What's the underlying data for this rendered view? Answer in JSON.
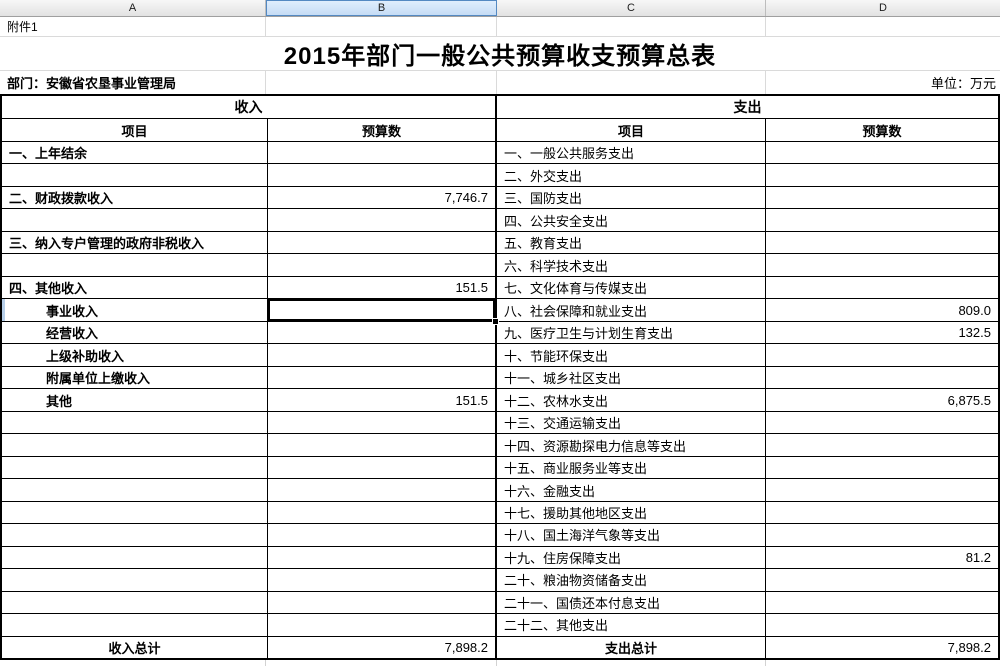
{
  "spreadsheet": {
    "column_headers": [
      "A",
      "B",
      "C",
      "D"
    ],
    "selected_column": "B",
    "attachment_note": "附件1",
    "title": "2015年部门一般公共预算收支预算总表",
    "department": "部门：安徽省农垦事业管理局",
    "unit": "单位：万元",
    "income_section": "收入",
    "expense_section": "支出",
    "income_item_header": "项目",
    "income_budget_header": "预算数",
    "expense_item_header": "项目",
    "expense_budget_header": "预算数",
    "rows": [
      {
        "left": "一、上年结余",
        "leftValue": "",
        "right": "一、一般公共服务支出",
        "rightValue": ""
      },
      {
        "left": "",
        "leftValue": "",
        "right": "二、外交支出",
        "rightValue": ""
      },
      {
        "left": "二、财政拨款收入",
        "leftValue": "7,746.7",
        "right": "三、国防支出",
        "rightValue": ""
      },
      {
        "left": "",
        "leftValue": "",
        "right": "四、公共安全支出",
        "rightValue": ""
      },
      {
        "left": "三、纳入专户管理的政府非税收入",
        "leftValue": "",
        "right": "五、教育支出",
        "rightValue": ""
      },
      {
        "left": "",
        "leftValue": "",
        "right": "六、科学技术支出",
        "rightValue": ""
      },
      {
        "left": "四、其他收入",
        "leftValue": "151.5",
        "right": "七、文化体育与传媒支出",
        "rightValue": ""
      },
      {
        "left": "事业收入",
        "leftValue": "",
        "right": "八、社会保障和就业支出",
        "rightValue": "809.0"
      },
      {
        "left": "经营收入",
        "leftValue": "",
        "right": "九、医疗卫生与计划生育支出",
        "rightValue": "132.5"
      },
      {
        "left": "上级补助收入",
        "leftValue": "",
        "right": "十、节能环保支出",
        "rightValue": ""
      },
      {
        "left": "附属单位上缴收入",
        "leftValue": "",
        "right": "十一、城乡社区支出",
        "rightValue": ""
      },
      {
        "left": "其他",
        "leftValue": "151.5",
        "right": "十二、农林水支出",
        "rightValue": "6,875.5"
      },
      {
        "left": "",
        "leftValue": "",
        "right": "十三、交通运输支出",
        "rightValue": ""
      },
      {
        "left": "",
        "leftValue": "",
        "right": "十四、资源勘探电力信息等支出",
        "rightValue": ""
      },
      {
        "left": "",
        "leftValue": "",
        "right": "十五、商业服务业等支出",
        "rightValue": ""
      },
      {
        "left": "",
        "leftValue": "",
        "right": "十六、金融支出",
        "rightValue": ""
      },
      {
        "left": "",
        "leftValue": "",
        "right": "十七、援助其他地区支出",
        "rightValue": ""
      },
      {
        "left": "",
        "leftValue": "",
        "right": "十八、国土海洋气象等支出",
        "rightValue": ""
      },
      {
        "left": "",
        "leftValue": "",
        "right": "十九、住房保障支出",
        "rightValue": "81.2"
      },
      {
        "left": "",
        "leftValue": "",
        "right": "二十、粮油物资储备支出",
        "rightValue": ""
      },
      {
        "left": "",
        "leftValue": "",
        "right": "二十一、国债还本付息支出",
        "rightValue": ""
      },
      {
        "left": "",
        "leftValue": "",
        "right": "二十二、其他支出",
        "rightValue": ""
      }
    ],
    "total": {
      "left": "收入总计",
      "leftValue": "7,898.2",
      "right": "支出总计",
      "rightValue": "7,898.2"
    },
    "colors": {
      "selected_header_bg": "#c5dcf5",
      "selected_header_border": "#5489c2",
      "table_border": "#000000",
      "gridline_gray": "#dadada"
    }
  }
}
